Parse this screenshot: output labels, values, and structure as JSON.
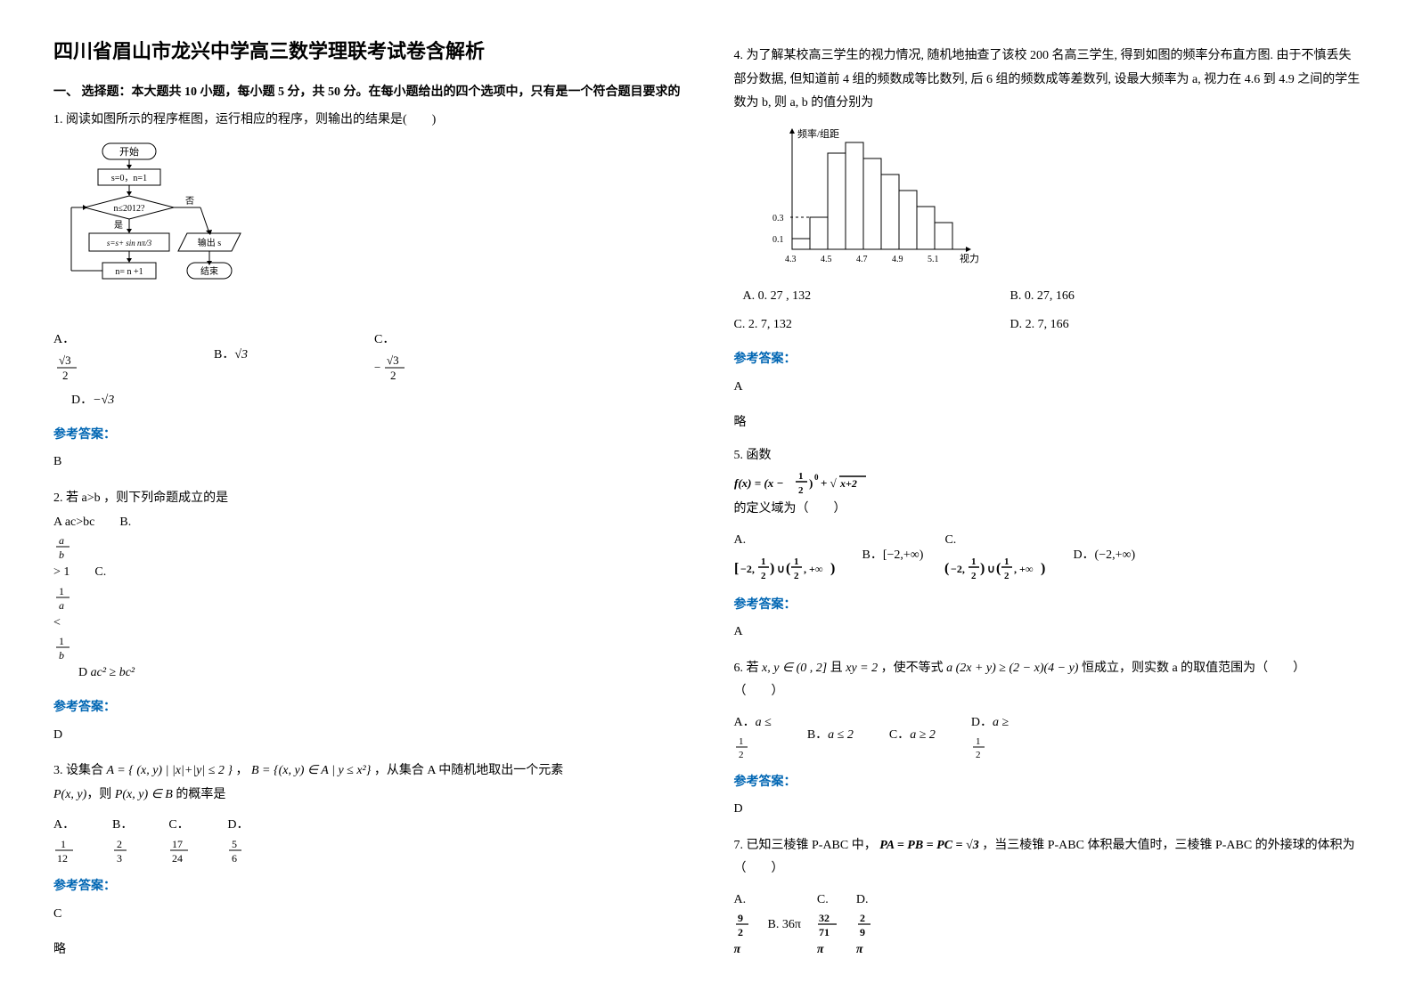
{
  "title": "四川省眉山市龙兴中学高三数学理联考试卷含解析",
  "section1_head": "一、 选择题：本大题共 10 小题，每小题 5 分，共 50 分。在每小题给出的四个选项中，只有是一个符合题目要求的",
  "q1": {
    "text": "1. 阅读如图所示的程序框图，运行相应的程序，则输出的结果是(　　)",
    "flow": {
      "start": "开始",
      "init": "s=0，n=1",
      "cond": "n≤2012?",
      "no": "否",
      "yes": "是",
      "body": "s=s+ sin(nπ/3)",
      "out": "输出 s",
      "inc": "n= n +1",
      "end": "结束"
    },
    "optA": "A．",
    "optA_val": "√3 / 2",
    "optB": "B．",
    "optB_val": "√3",
    "optC": "C．",
    "optC_val": "− √3 / 2",
    "optD": "D．",
    "optD_val": "−√3",
    "ans_label": "参考答案：",
    "ans": "B"
  },
  "q2": {
    "text": "2. 若 a>b ，则下列命题成立的是",
    "opts": "A ac>bc　　B. a/b > 1　　C. 1/a < 1/b　　D  ac² ≥ bc²",
    "ans_label": "参考答案：",
    "ans": "D"
  },
  "q3": {
    "text_a": "3. 设集合 ",
    "setA": "A = { (x, y) | |x|+|y| ≤ 2 }",
    "text_b": "，",
    "setB": "B = {(x, y) ∈ A | y ≤ x²}",
    "text_c": "，从集合 A 中随机地取出一个元素",
    "text_d": "P(x, y)，则 P(x, y) ∈ B 的概率是",
    "optA": "A．1/12",
    "optB": "B．2/3",
    "optC": "C．17/24",
    "optD": "D．5/6",
    "ans_label": "参考答案：",
    "ans": "C",
    "note": "略"
  },
  "q4": {
    "text": "4. 为了解某校高三学生的视力情况, 随机地抽查了该校 200 名高三学生, 得到如图的频率分布直方图. 由于不慎丢失部分数据, 但知道前 4 组的频数成等比数列, 后 6 组的频数成等差数列, 设最大频率为 a, 视力在 4.6 到 4.9 之间的学生数为 b, 则 a, b 的值分别为",
    "histogram": {
      "ylabel": "频率/组距",
      "xlabel": "视力",
      "y_ticks": [
        "0.3",
        "0.1"
      ],
      "x_ticks": [
        "4.3",
        "4.5",
        "4.7",
        "4.9",
        "5.1"
      ],
      "bars": [
        0.1,
        0.3,
        0.9,
        1.0,
        0.85,
        0.7,
        0.55,
        0.4,
        0.25
      ],
      "bar_color": "#ffffff",
      "border_color": "#000000"
    },
    "row1A": "A. 0. 27 , 132",
    "row1B": "B. 0. 27, 166",
    "row2C": "C. 2. 7, 132",
    "row2D": "D. 2. 7, 166",
    "ans_label": "参考答案：",
    "ans": "A",
    "note": "略"
  },
  "q5": {
    "text_a": "5. 函数 ",
    "func": "f(x) = (x − 1/2)⁰ + √(x+2)",
    "text_b": " 的定义域为（　　）",
    "optA": "A. [−2, 1/2) ∪ (1/2, +∞)",
    "optB": "B．[−2,+∞)",
    "optC": "C. (−2, 1/2) ∪ (1/2, +∞)",
    "optD": "D．(−2,+∞)",
    "ans_label": "参考答案：",
    "ans": "A"
  },
  "q6": {
    "text_a": "6. 若 ",
    "cond1": "x, y ∈ (0 , 2]",
    "text_b": " 且 ",
    "cond2": "xy = 2",
    "text_c": "，使不等式 ",
    "ineq": "a (2x + y) ≥ (2 − x)(4 − y)",
    "text_d": " 恒成立，则实数 a 的取值范围为（　　）",
    "optA": "A．a ≤ 1/2",
    "optB": "B．a ≤ 2",
    "optC": "C．a ≥ 2",
    "optD": "D．a ≥ 1/2",
    "ans_label": "参考答案：",
    "ans": "D"
  },
  "q7": {
    "text_a": "7. 已知三棱锥 P-ABC 中，",
    "eq": "PA = PB = PC = √3",
    "text_b": "，当三棱锥 P-ABC 体积最大值时，三棱锥 P-ABC 的外接球的体积为（　　）",
    "optA": "A. (9/2)π",
    "optB": "B. 36π",
    "optC": "C. (32/71)π",
    "optD": "D. (2/9)π"
  }
}
